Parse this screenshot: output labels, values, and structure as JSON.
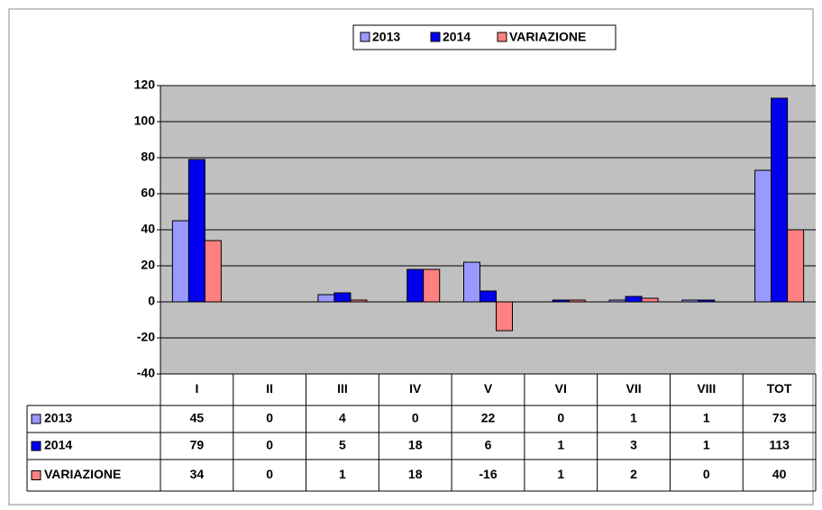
{
  "chart_data": {
    "type": "bar",
    "categories": [
      "I",
      "II",
      "III",
      "IV",
      "V",
      "VI",
      "VII",
      "VIII",
      "TOT"
    ],
    "series": [
      {
        "name": "2013",
        "color": "#9999ff",
        "values": [
          45,
          0,
          4,
          0,
          22,
          0,
          1,
          1,
          73
        ]
      },
      {
        "name": "2014",
        "color": "#0000ee",
        "values": [
          79,
          0,
          5,
          18,
          6,
          1,
          3,
          1,
          113
        ]
      },
      {
        "name": "VARIAZIONE",
        "color": "#ff8080",
        "values": [
          34,
          0,
          1,
          18,
          -16,
          1,
          2,
          0,
          40
        ]
      }
    ],
    "ylim": [
      -40,
      120
    ],
    "yticks": [
      -40,
      -20,
      0,
      20,
      40,
      60,
      80,
      100,
      120
    ],
    "grid": true,
    "legend": "top",
    "data_table": true
  }
}
